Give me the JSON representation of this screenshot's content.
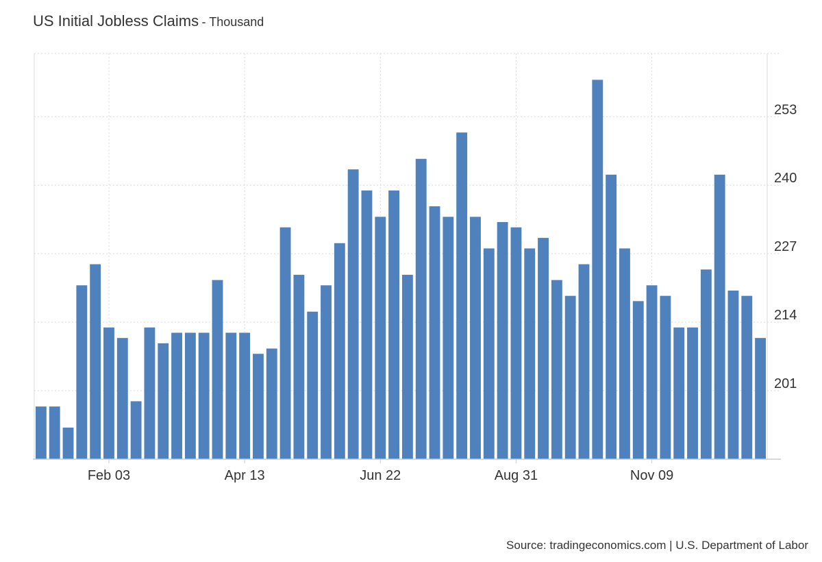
{
  "title": "US Initial Jobless Claims",
  "unit": "Thousand",
  "source": "Source: tradingeconomics.com | U.S. Department of Labor",
  "colors": {
    "bar": "#4f81bd",
    "grid": "#d9d9d9",
    "axis": "#cccccc"
  },
  "chart_data": {
    "type": "bar",
    "title": "US Initial Jobless Claims",
    "unit": "Thousand",
    "ylim": [
      188,
      265
    ],
    "yticks": [
      201,
      214,
      227,
      240,
      253
    ],
    "xtick_labels": [
      {
        "index": 5,
        "label": "Feb 03"
      },
      {
        "index": 15,
        "label": "Apr 13"
      },
      {
        "index": 25,
        "label": "Jun 22"
      },
      {
        "index": 35,
        "label": "Aug 31"
      },
      {
        "index": 45,
        "label": "Nov 09"
      }
    ],
    "grid": true,
    "legend": "none",
    "values": [
      198,
      198,
      194,
      221,
      225,
      213,
      211,
      199,
      213,
      210,
      212,
      212,
      212,
      222,
      212,
      212,
      208,
      209,
      232,
      223,
      216,
      221,
      229,
      243,
      239,
      234,
      239,
      223,
      245,
      236,
      234,
      250,
      234,
      228,
      233,
      232,
      228,
      230,
      222,
      219,
      225,
      260,
      242,
      228,
      218,
      221,
      219,
      213,
      213,
      224,
      242,
      220,
      219,
      211
    ]
  }
}
